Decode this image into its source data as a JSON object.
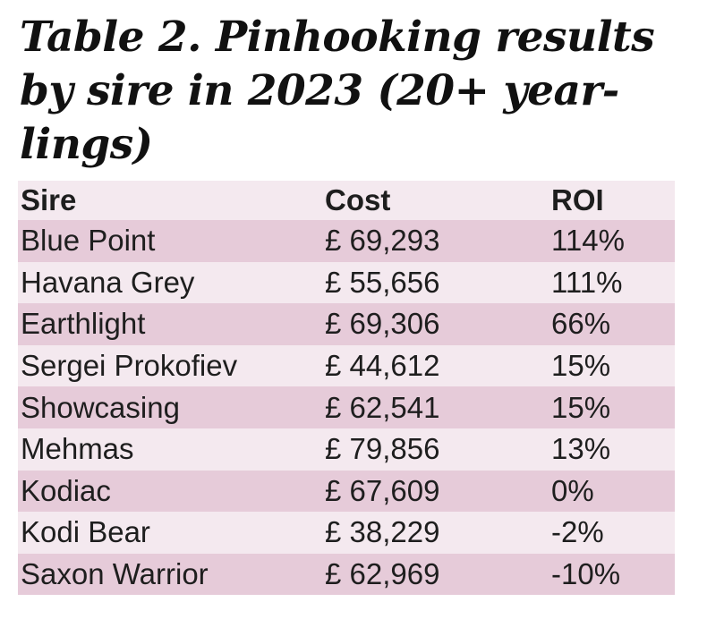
{
  "title": "Table 2. Pinhooking results by sire in 2023 (20+ year-lings)",
  "columns": {
    "sire": "Sire",
    "cost": "Cost",
    "roi": "ROI"
  },
  "rows": [
    {
      "sire": "Blue Point",
      "cost": "£ 69,293",
      "roi": "114%"
    },
    {
      "sire": "Havana Grey",
      "cost": "£ 55,656",
      "roi": "111%"
    },
    {
      "sire": "Earthlight",
      "cost": "£ 69,306",
      "roi": "66%"
    },
    {
      "sire": "Sergei Prokofiev",
      "cost": "£ 44,612",
      "roi": "15%"
    },
    {
      "sire": "Showcasing",
      "cost": "£ 62,541",
      "roi": "15%"
    },
    {
      "sire": "Mehmas",
      "cost": "£ 79,856",
      "roi": "13%"
    },
    {
      "sire": "Kodiac",
      "cost": "£ 67,609",
      "roi": "0%"
    },
    {
      "sire": "Kodi Bear",
      "cost": "£ 38,229",
      "roi": "-2%"
    },
    {
      "sire": "Saxon Warrior",
      "cost": "£ 62,969",
      "roi": "-10%"
    }
  ],
  "colors": {
    "row_light": "#f4e9ef",
    "row_dark": "#e6cbd9",
    "text": "#1e1e1e"
  }
}
